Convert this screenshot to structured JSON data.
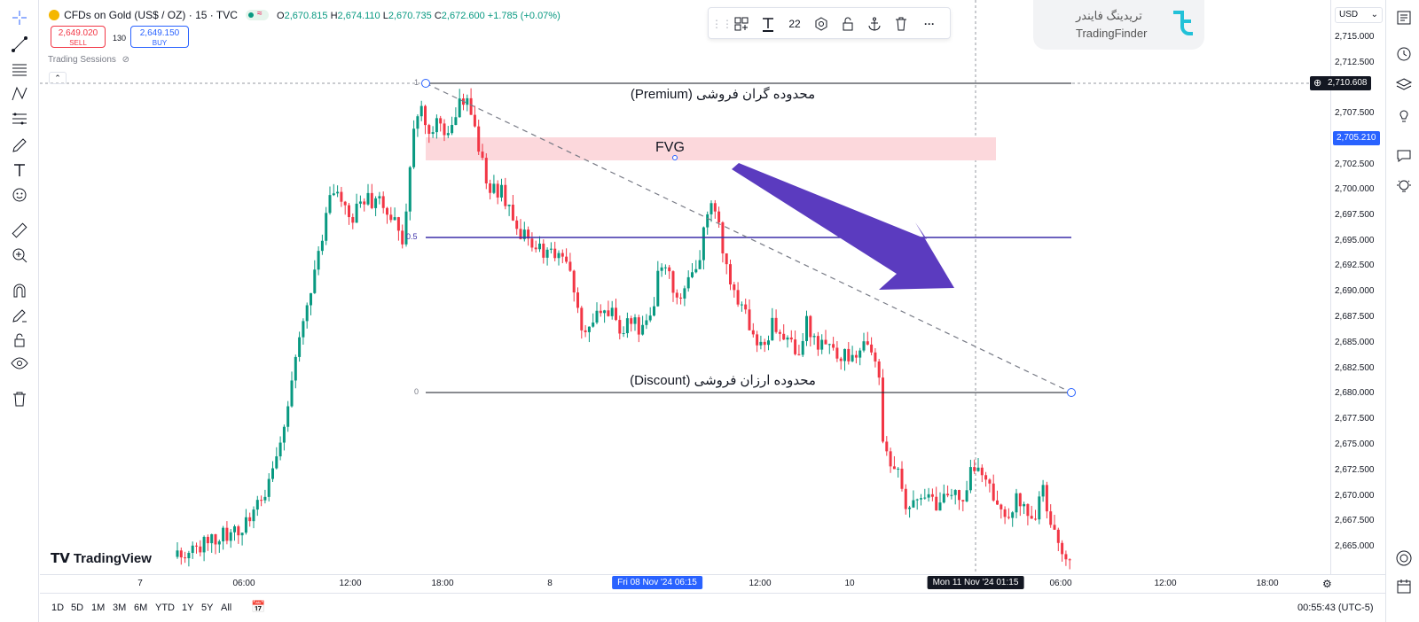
{
  "legend": {
    "symbol": "CFDs on Gold (US$ / OZ) · 15 · TVC",
    "o_label": "O",
    "o": "2,670.815",
    "h_label": "H",
    "h": "2,674.110",
    "l_label": "L",
    "l": "2,670.735",
    "c_label": "C",
    "c": "2,672.600",
    "change": "+1.785 (+0.07%)",
    "sell_price": "2,649.020",
    "sell_label": "SELL",
    "spread": "130",
    "buy_price": "2,649.150",
    "buy_label": "BUY",
    "sessions": "Trading Sessions"
  },
  "drawing_toolbar": {
    "font_size": "22"
  },
  "watermark": {
    "fa": "تریدینگ فایندر",
    "en": "TradingFinder"
  },
  "currency": "USD",
  "price_ticks": [
    "2,715.000",
    "2,712.500",
    "2,707.500",
    "2,702.500",
    "2,700.000",
    "2,697.500",
    "2,695.000",
    "2,692.500",
    "2,690.000",
    "2,687.500",
    "2,685.000",
    "2,682.500",
    "2,680.000",
    "2,677.500",
    "2,675.000",
    "2,672.500",
    "2,670.000",
    "2,667.500",
    "2,665.000"
  ],
  "price_labels": {
    "crosshair": "2,710.608",
    "fvg": "2,705.210"
  },
  "annotations": {
    "premium": "محدوده گران فروشی (Premium)",
    "discount": "محدوده ارزان فروشی (Discount)",
    "fvg": "FVG",
    "fib_1": "1",
    "fib_05": "0.5",
    "fib_0": "0"
  },
  "time_labels": [
    "7",
    "06:00",
    "12:00",
    "18:00",
    "8",
    "12:00",
    "10",
    "06:00",
    "12:00",
    "18:00"
  ],
  "time_highlight_1": "Fri 08 Nov '24   06:15",
  "time_highlight_2": "Mon 11 Nov '24   01:15",
  "brand": "TradingView",
  "ranges": [
    "1D",
    "5D",
    "1M",
    "3M",
    "6M",
    "YTD",
    "1Y",
    "5Y",
    "All"
  ],
  "clock": "00:55:43 (UTC-5)",
  "colors": {
    "up": "#089981",
    "down": "#f23645",
    "fvg": "#fcd8dc",
    "arrow": "#5b3bbf",
    "accent": "#2962ff",
    "mid_line": "#3b2fa8"
  },
  "chart_data": {
    "type": "candlestick",
    "ylim": [
      2663.5,
      2717.5
    ],
    "fib_levels": {
      "1": 2710.4,
      "0.5": 2695.0,
      "0": 2680.0
    },
    "fvg_zone": [
      2703.0,
      2705.2
    ]
  }
}
